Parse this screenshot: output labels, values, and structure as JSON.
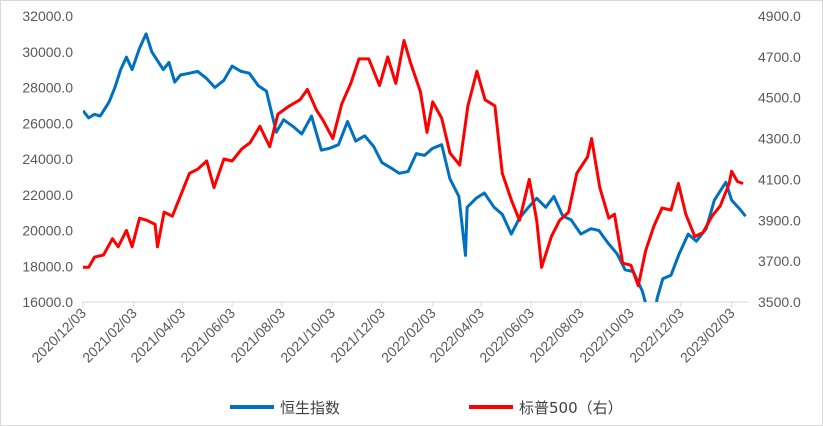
{
  "chart_data": {
    "type": "line",
    "title": "",
    "y_left": {
      "ticks": [
        "16000.0",
        "18000.0",
        "20000.0",
        "22000.0",
        "24000.0",
        "26000.0",
        "28000.0",
        "30000.0",
        "32000.0"
      ],
      "range": [
        16000,
        32000
      ]
    },
    "y_right": {
      "ticks": [
        "3500.0",
        "3700.0",
        "3900.0",
        "4100.0",
        "4300.0",
        "4500.0",
        "4700.0",
        "4900.0"
      ],
      "range": [
        3500,
        4900
      ]
    },
    "x_ticks": [
      "2020/12/03",
      "2021/02/03",
      "2021/04/03",
      "2021/06/03",
      "2021/08/03",
      "2021/10/03",
      "2021/12/03",
      "2022/02/03",
      "2022/04/03",
      "2022/06/03",
      "2022/08/03",
      "2022/10/03",
      "2022/12/03",
      "2023/02/03"
    ],
    "series": [
      {
        "name": "恒生指数",
        "axis": "left",
        "color": "#0070c0",
        "points": [
          [
            "2020/12/03",
            26700
          ],
          [
            "2020/12/10",
            26300
          ],
          [
            "2020/12/17",
            26500
          ],
          [
            "2020/12/24",
            26400
          ],
          [
            "2021/01/04",
            27200
          ],
          [
            "2021/01/11",
            28000
          ],
          [
            "2021/01/18",
            29000
          ],
          [
            "2021/01/25",
            29700
          ],
          [
            "2021/02/01",
            29000
          ],
          [
            "2021/02/10",
            30200
          ],
          [
            "2021/02/18",
            31000
          ],
          [
            "2021/02/25",
            30000
          ],
          [
            "2021/03/04",
            29500
          ],
          [
            "2021/03/11",
            29000
          ],
          [
            "2021/03/18",
            29400
          ],
          [
            "2021/03/25",
            28300
          ],
          [
            "2021/04/01",
            28700
          ],
          [
            "2021/04/12",
            28800
          ],
          [
            "2021/04/22",
            28900
          ],
          [
            "2021/05/03",
            28500
          ],
          [
            "2021/05/13",
            28000
          ],
          [
            "2021/05/24",
            28400
          ],
          [
            "2021/06/03",
            29200
          ],
          [
            "2021/06/14",
            28900
          ],
          [
            "2021/06/24",
            28800
          ],
          [
            "2021/07/05",
            28100
          ],
          [
            "2021/07/15",
            27800
          ],
          [
            "2021/07/27",
            25500
          ],
          [
            "2021/08/05",
            26200
          ],
          [
            "2021/08/17",
            25800
          ],
          [
            "2021/08/27",
            25400
          ],
          [
            "2021/09/08",
            26400
          ],
          [
            "2021/09/20",
            24500
          ],
          [
            "2021/09/30",
            24600
          ],
          [
            "2021/10/11",
            24800
          ],
          [
            "2021/10/22",
            26100
          ],
          [
            "2021/11/01",
            25000
          ],
          [
            "2021/11/12",
            25300
          ],
          [
            "2021/11/23",
            24700
          ],
          [
            "2021/12/03",
            23800
          ],
          [
            "2021/12/14",
            23500
          ],
          [
            "2021/12/24",
            23200
          ],
          [
            "2022/01/04",
            23300
          ],
          [
            "2022/01/14",
            24300
          ],
          [
            "2022/01/24",
            24200
          ],
          [
            "2022/02/03",
            24600
          ],
          [
            "2022/02/14",
            24800
          ],
          [
            "2022/02/24",
            22900
          ],
          [
            "2022/03/07",
            21900
          ],
          [
            "2022/03/15",
            18600
          ],
          [
            "2022/03/17",
            21300
          ],
          [
            "2022/03/28",
            21800
          ],
          [
            "2022/04/07",
            22100
          ],
          [
            "2022/04/19",
            21300
          ],
          [
            "2022/04/29",
            20900
          ],
          [
            "2022/05/10",
            19800
          ],
          [
            "2022/05/20",
            20700
          ],
          [
            "2022/05/31",
            21300
          ],
          [
            "2022/06/10",
            21800
          ],
          [
            "2022/06/21",
            21300
          ],
          [
            "2022/07/01",
            21900
          ],
          [
            "2022/07/12",
            20800
          ],
          [
            "2022/07/22",
            20600
          ],
          [
            "2022/08/03",
            19800
          ],
          [
            "2022/08/15",
            20100
          ],
          [
            "2022/08/25",
            20000
          ],
          [
            "2022/09/05",
            19300
          ],
          [
            "2022/09/16",
            18700
          ],
          [
            "2022/09/26",
            17800
          ],
          [
            "2022/10/06",
            17700
          ],
          [
            "2022/10/17",
            16600
          ],
          [
            "2022/10/24",
            15400
          ],
          [
            "2022/10/31",
            14700
          ],
          [
            "2022/11/04",
            16200
          ],
          [
            "2022/11/11",
            17300
          ],
          [
            "2022/11/21",
            17500
          ],
          [
            "2022/12/01",
            18700
          ],
          [
            "2022/12/12",
            19800
          ],
          [
            "2022/12/22",
            19400
          ],
          [
            "2023/01/03",
            20100
          ],
          [
            "2023/01/13",
            21700
          ],
          [
            "2023/01/27",
            22700
          ],
          [
            "2023/02/03",
            21700
          ],
          [
            "2023/02/13",
            21200
          ],
          [
            "2023/02/20",
            20800
          ]
        ]
      },
      {
        "name": "标普500（右）",
        "axis": "right",
        "color": "#ff0000",
        "points": [
          [
            "2020/12/03",
            3670
          ],
          [
            "2020/12/10",
            3670
          ],
          [
            "2020/12/17",
            3720
          ],
          [
            "2020/12/28",
            3730
          ],
          [
            "2021/01/08",
            3810
          ],
          [
            "2021/01/15",
            3770
          ],
          [
            "2021/01/25",
            3850
          ],
          [
            "2021/02/01",
            3770
          ],
          [
            "2021/02/10",
            3910
          ],
          [
            "2021/02/19",
            3900
          ],
          [
            "2021/03/01",
            3880
          ],
          [
            "2021/03/04",
            3770
          ],
          [
            "2021/03/12",
            3940
          ],
          [
            "2021/03/22",
            3920
          ],
          [
            "2021/04/01",
            4020
          ],
          [
            "2021/04/12",
            4130
          ],
          [
            "2021/04/22",
            4150
          ],
          [
            "2021/05/03",
            4190
          ],
          [
            "2021/05/12",
            4060
          ],
          [
            "2021/05/24",
            4200
          ],
          [
            "2021/06/03",
            4190
          ],
          [
            "2021/06/15",
            4250
          ],
          [
            "2021/06/25",
            4280
          ],
          [
            "2021/07/07",
            4360
          ],
          [
            "2021/07/19",
            4260
          ],
          [
            "2021/07/29",
            4420
          ],
          [
            "2021/08/12",
            4460
          ],
          [
            "2021/08/25",
            4490
          ],
          [
            "2021/09/03",
            4540
          ],
          [
            "2021/09/14",
            4440
          ],
          [
            "2021/09/22",
            4390
          ],
          [
            "2021/10/04",
            4300
          ],
          [
            "2021/10/15",
            4470
          ],
          [
            "2021/10/26",
            4570
          ],
          [
            "2021/11/05",
            4690
          ],
          [
            "2021/11/17",
            4690
          ],
          [
            "2021/11/30",
            4560
          ],
          [
            "2021/12/10",
            4700
          ],
          [
            "2021/12/20",
            4570
          ],
          [
            "2021/12/30",
            4780
          ],
          [
            "2022/01/07",
            4670
          ],
          [
            "2022/01/19",
            4530
          ],
          [
            "2022/01/27",
            4330
          ],
          [
            "2022/02/03",
            4480
          ],
          [
            "2022/02/14",
            4400
          ],
          [
            "2022/02/24",
            4230
          ],
          [
            "2022/03/08",
            4170
          ],
          [
            "2022/03/18",
            4460
          ],
          [
            "2022/03/29",
            4630
          ],
          [
            "2022/04/08",
            4490
          ],
          [
            "2022/04/20",
            4460
          ],
          [
            "2022/04/29",
            4130
          ],
          [
            "2022/05/10",
            4000
          ],
          [
            "2022/05/20",
            3900
          ],
          [
            "2022/06/01",
            4100
          ],
          [
            "2022/06/10",
            3900
          ],
          [
            "2022/06/16",
            3670
          ],
          [
            "2022/06/28",
            3820
          ],
          [
            "2022/07/08",
            3900
          ],
          [
            "2022/07/19",
            3940
          ],
          [
            "2022/07/29",
            4130
          ],
          [
            "2022/08/11",
            4210
          ],
          [
            "2022/08/16",
            4300
          ],
          [
            "2022/08/26",
            4060
          ],
          [
            "2022/09/06",
            3910
          ],
          [
            "2022/09/13",
            3930
          ],
          [
            "2022/09/23",
            3690
          ],
          [
            "2022/10/03",
            3680
          ],
          [
            "2022/10/12",
            3580
          ],
          [
            "2022/10/21",
            3750
          ],
          [
            "2022/10/31",
            3870
          ],
          [
            "2022/11/10",
            3960
          ],
          [
            "2022/11/21",
            3950
          ],
          [
            "2022/11/30",
            4080
          ],
          [
            "2022/12/09",
            3930
          ],
          [
            "2022/12/20",
            3820
          ],
          [
            "2022/12/30",
            3840
          ],
          [
            "2023/01/10",
            3920
          ],
          [
            "2023/01/20",
            3970
          ],
          [
            "2023/01/31",
            4080
          ],
          [
            "2023/02/03",
            4140
          ],
          [
            "2023/02/10",
            4090
          ],
          [
            "2023/02/17",
            4080
          ]
        ]
      }
    ],
    "legend": {
      "position": "bottom",
      "items": [
        {
          "label": "恒生指数",
          "color": "#0070c0"
        },
        {
          "label": "标普500（右）",
          "color": "#ff0000"
        }
      ]
    },
    "grid": false
  }
}
